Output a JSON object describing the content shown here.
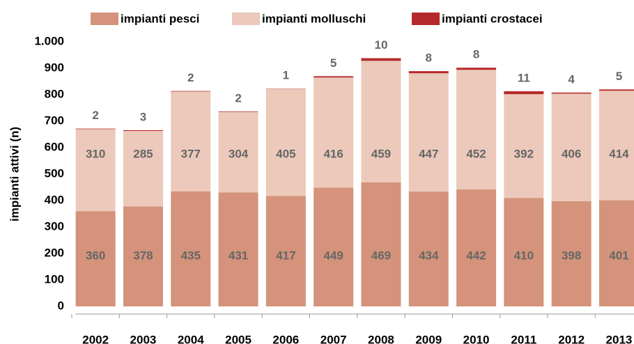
{
  "chart_data": {
    "type": "stacked_bar",
    "ylabel": "impianti attivi (n)",
    "categories": [
      "2002",
      "2003",
      "2004",
      "2005",
      "2006",
      "2007",
      "2008",
      "2009",
      "2010",
      "2011",
      "2012",
      "2013"
    ],
    "series": [
      {
        "name": "impianti pesci",
        "color": "#d4937a",
        "values": [
          360,
          378,
          435,
          431,
          417,
          449,
          469,
          434,
          442,
          410,
          398,
          401
        ]
      },
      {
        "name": "impianti molluschi",
        "color": "#ecc9bb",
        "values": [
          310,
          285,
          377,
          304,
          405,
          416,
          459,
          447,
          452,
          392,
          406,
          414
        ]
      },
      {
        "name": "impianti crostacei",
        "color": "#b5292a",
        "values": [
          2,
          3,
          2,
          2,
          1,
          5,
          10,
          8,
          8,
          11,
          4,
          5
        ]
      }
    ],
    "ylim": [
      0,
      1000
    ],
    "yticks": [
      0,
      100,
      200,
      300,
      400,
      500,
      600,
      700,
      800,
      900,
      {
        "value": 1000,
        "label": "1.000"
      }
    ],
    "grid": false,
    "legend": "top"
  }
}
